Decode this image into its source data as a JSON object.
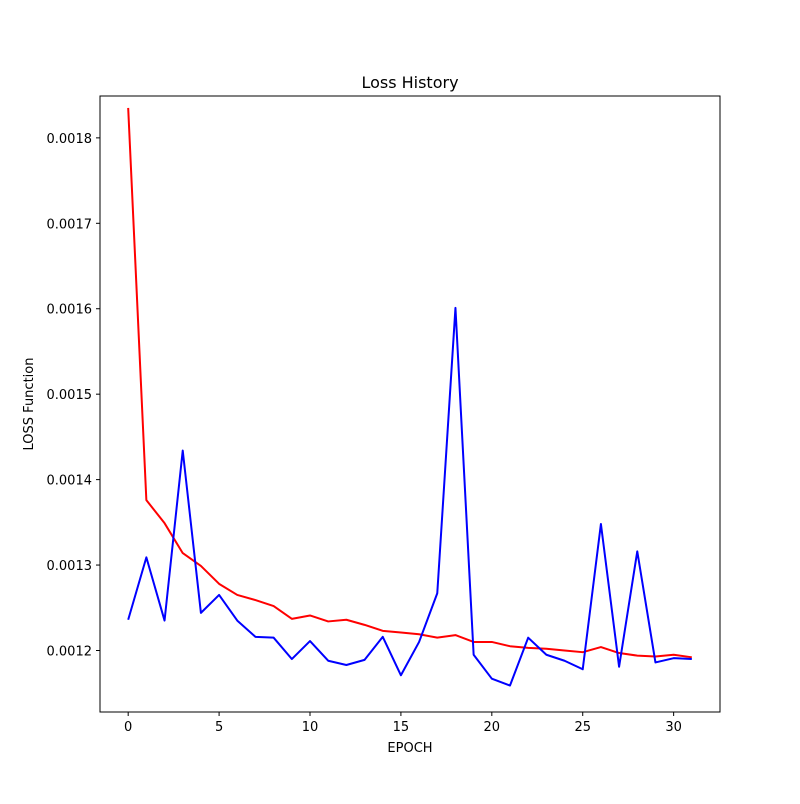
{
  "chart_data": {
    "type": "line",
    "title": "Loss History",
    "xlabel": "EPOCH",
    "ylabel": "LOSS Function",
    "xlim": [
      -1.55,
      32.55
    ],
    "ylim": [
      0.001128,
      0.001849
    ],
    "xticks": [
      0,
      5,
      10,
      15,
      20,
      25,
      30
    ],
    "xtick_labels": [
      "0",
      "5",
      "10",
      "15",
      "20",
      "25",
      "30"
    ],
    "yticks": [
      0.0012,
      0.0013,
      0.0014,
      0.0015,
      0.0016,
      0.0017,
      0.0018
    ],
    "ytick_labels": [
      "0.0012",
      "0.0013",
      "0.0014",
      "0.0015",
      "0.0016",
      "0.0017",
      "0.0018"
    ],
    "grid": false,
    "legend": "none",
    "x": [
      0,
      1,
      2,
      3,
      4,
      5,
      6,
      7,
      8,
      9,
      10,
      11,
      12,
      13,
      14,
      15,
      16,
      17,
      18,
      19,
      20,
      21,
      22,
      23,
      24,
      25,
      26,
      27,
      28,
      29,
      30,
      31
    ],
    "series": [
      {
        "color": "#ff0000",
        "values": [
          0.001835,
          0.001376,
          0.001349,
          0.001314,
          0.001299,
          0.001278,
          0.001265,
          0.001259,
          0.001252,
          0.001237,
          0.001241,
          0.001234,
          0.001236,
          0.00123,
          0.001223,
          0.001221,
          0.001219,
          0.001215,
          0.001218,
          0.00121,
          0.00121,
          0.001205,
          0.001203,
          0.001202,
          0.0012,
          0.001198,
          0.001204,
          0.001197,
          0.001194,
          0.001193,
          0.001195,
          0.001192
        ]
      },
      {
        "color": "#0000ff",
        "values": [
          0.001236,
          0.001309,
          0.001235,
          0.001434,
          0.001244,
          0.001265,
          0.001235,
          0.001216,
          0.001215,
          0.00119,
          0.001211,
          0.001188,
          0.001183,
          0.001189,
          0.001216,
          0.001171,
          0.00121,
          0.001267,
          0.001601,
          0.001195,
          0.001167,
          0.001159,
          0.001215,
          0.001195,
          0.001188,
          0.001178,
          0.001348,
          0.001181,
          0.001316,
          0.001186,
          0.001191,
          0.00119
        ]
      }
    ]
  }
}
